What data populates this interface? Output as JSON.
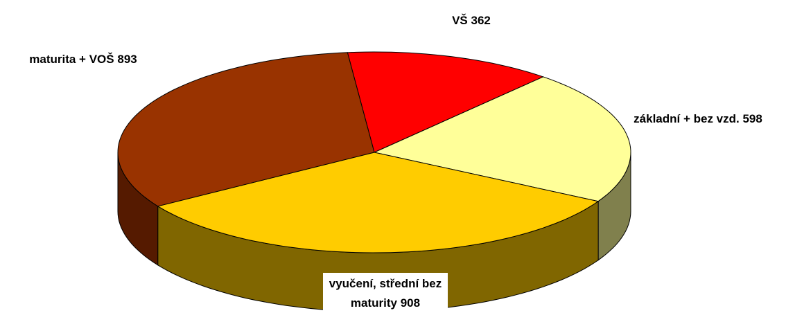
{
  "chart_data": {
    "type": "pie3d",
    "categories": [
      "VŠ",
      "základní + bez vzd.",
      "vyučení, střední bez maturity",
      "maturita + VOŠ"
    ],
    "values": [
      362,
      598,
      908,
      893
    ],
    "colors": [
      "#ff0000",
      "#ffff99",
      "#ffcc00",
      "#993300"
    ],
    "side_colors": [
      "#800000",
      "#80804d",
      "#806600",
      "#551a00"
    ]
  }
}
